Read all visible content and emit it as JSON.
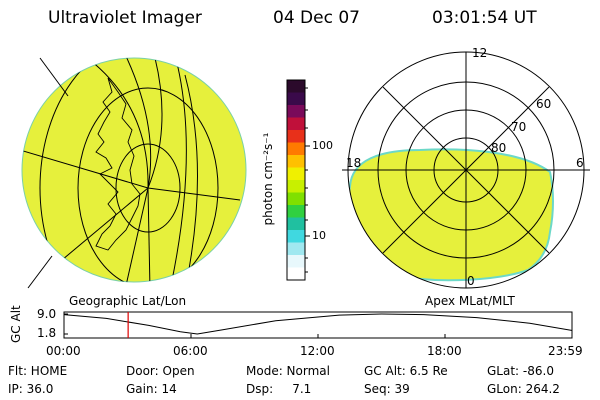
{
  "header": {
    "title": "Ultraviolet Imager",
    "date": "04 Dec 07",
    "time": "03:01:54 UT"
  },
  "left_panel": {
    "label": "Geographic Lat/Lon"
  },
  "right_panel": {
    "label": "Apex MLat/MLT",
    "mlt_labels": [
      "12",
      "18",
      "6",
      "0"
    ],
    "lat_labels": [
      "60",
      "70",
      "80"
    ]
  },
  "colorbar": {
    "unit_label": "photon cm⁻²s⁻¹",
    "ticks": [
      "100",
      "10"
    ],
    "colors": [
      "#2b0a2b",
      "#3a0a4a",
      "#7a0a5a",
      "#c0103a",
      "#e8301a",
      "#ff7a00",
      "#ffc000",
      "#f0f000",
      "#c8f000",
      "#80e000",
      "#30d040",
      "#20c0a0",
      "#40d8e0",
      "#a0e8f0",
      "#e8f8fc",
      "#ffffff"
    ]
  },
  "altitude_plot": {
    "ylabel": "GC Alt",
    "yticks": [
      "9.0",
      "1.8"
    ],
    "xticks": [
      "00:00",
      "06:00",
      "12:00",
      "18:00",
      "23:59"
    ],
    "current_marker_hour": 3.03,
    "curve": [
      {
        "h": 0,
        "alt": 8.8
      },
      {
        "h": 2,
        "alt": 7.4
      },
      {
        "h": 4,
        "alt": 4.9
      },
      {
        "h": 5.5,
        "alt": 2.6
      },
      {
        "h": 6.3,
        "alt": 1.8
      },
      {
        "h": 7.5,
        "alt": 3.3
      },
      {
        "h": 10,
        "alt": 6.6
      },
      {
        "h": 13,
        "alt": 8.6
      },
      {
        "h": 15,
        "alt": 9.0
      },
      {
        "h": 17,
        "alt": 8.8
      },
      {
        "h": 19.5,
        "alt": 7.7
      },
      {
        "h": 22,
        "alt": 5.7
      },
      {
        "h": 23.98,
        "alt": 3.1
      }
    ]
  },
  "info": {
    "flt": "Flt: HOME",
    "door": "Door: Open",
    "mode": "Mode: Normal",
    "gcalt": "GC Alt: 6.5 Re",
    "glat": "GLat: -86.0",
    "ip": "IP: 36.0",
    "gain": "Gain: 14",
    "dsp": "Dsp:     7.1",
    "seq": "Seq: 39",
    "glon": "GLon: 264.2"
  },
  "colors": {
    "aurora": "#e6f03c",
    "edge": "#6cd8c8",
    "marker": "#e00000"
  }
}
